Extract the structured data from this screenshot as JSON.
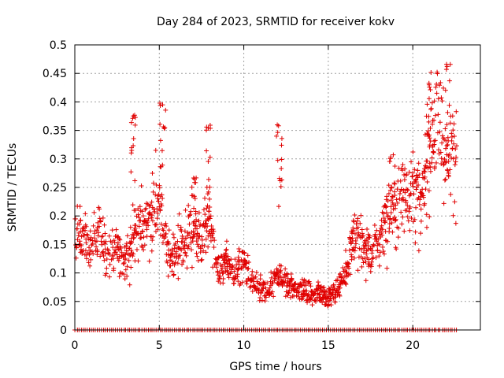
{
  "chart_data": {
    "type": "scatter",
    "title": "Day 284 of 2023, SRMTID for receiver kokv",
    "xlabel": "GPS time / hours",
    "ylabel": "SRMTID / TECUs",
    "xlim": [
      0,
      24
    ],
    "ylim": [
      0,
      0.5
    ],
    "x_ticks": [
      "0",
      "5",
      "10",
      "15",
      "20"
    ],
    "x_tick_values": [
      0,
      5,
      10,
      15,
      20
    ],
    "y_ticks": [
      "0",
      "0.05",
      "0.1",
      "0.15",
      "0.2",
      "0.25",
      "0.3",
      "0.35",
      "0.4",
      "0.45",
      "0.5"
    ],
    "y_tick_values": [
      0,
      0.05,
      0.1,
      0.15,
      0.2,
      0.25,
      0.3,
      0.35,
      0.4,
      0.45,
      0.5
    ],
    "grid": true,
    "marker": "+",
    "color": "#e00000",
    "sampling_interval_hours": 0.02,
    "time_range_hours": [
      0,
      22.6
    ],
    "trend_profile": [
      [
        0.0,
        0.16
      ],
      [
        0.5,
        0.17
      ],
      [
        1.0,
        0.15
      ],
      [
        1.5,
        0.16
      ],
      [
        2.0,
        0.13
      ],
      [
        2.5,
        0.14
      ],
      [
        3.0,
        0.12
      ],
      [
        3.5,
        0.16
      ],
      [
        4.0,
        0.18
      ],
      [
        4.5,
        0.2
      ],
      [
        5.0,
        0.22
      ],
      [
        5.5,
        0.13
      ],
      [
        6.0,
        0.14
      ],
      [
        6.5,
        0.15
      ],
      [
        7.0,
        0.19
      ],
      [
        7.5,
        0.15
      ],
      [
        8.0,
        0.2
      ],
      [
        8.5,
        0.1
      ],
      [
        9.0,
        0.12
      ],
      [
        9.5,
        0.1
      ],
      [
        10.0,
        0.12
      ],
      [
        10.5,
        0.08
      ],
      [
        11.0,
        0.07
      ],
      [
        11.5,
        0.065
      ],
      [
        12.0,
        0.1
      ],
      [
        12.5,
        0.08
      ],
      [
        13.0,
        0.075
      ],
      [
        13.5,
        0.07
      ],
      [
        14.0,
        0.06
      ],
      [
        14.5,
        0.065
      ],
      [
        15.0,
        0.06
      ],
      [
        15.5,
        0.07
      ],
      [
        16.0,
        0.1
      ],
      [
        16.5,
        0.17
      ],
      [
        17.0,
        0.15
      ],
      [
        17.5,
        0.13
      ],
      [
        18.0,
        0.16
      ],
      [
        18.5,
        0.2
      ],
      [
        19.0,
        0.22
      ],
      [
        19.5,
        0.24
      ],
      [
        20.0,
        0.25
      ],
      [
        20.5,
        0.21
      ],
      [
        21.0,
        0.33
      ],
      [
        21.5,
        0.37
      ],
      [
        22.0,
        0.3
      ],
      [
        22.6,
        0.33
      ]
    ],
    "peak_clusters": [
      {
        "x": 3.5,
        "y": 0.38
      },
      {
        "x": 5.2,
        "y": 0.4
      },
      {
        "x": 7.1,
        "y": 0.27
      },
      {
        "x": 7.9,
        "y": 0.36
      },
      {
        "x": 12.1,
        "y": 0.36
      },
      {
        "x": 18.8,
        "y": 0.31
      },
      {
        "x": 20.9,
        "y": 0.44
      },
      {
        "x": 22.1,
        "y": 0.47
      }
    ]
  }
}
